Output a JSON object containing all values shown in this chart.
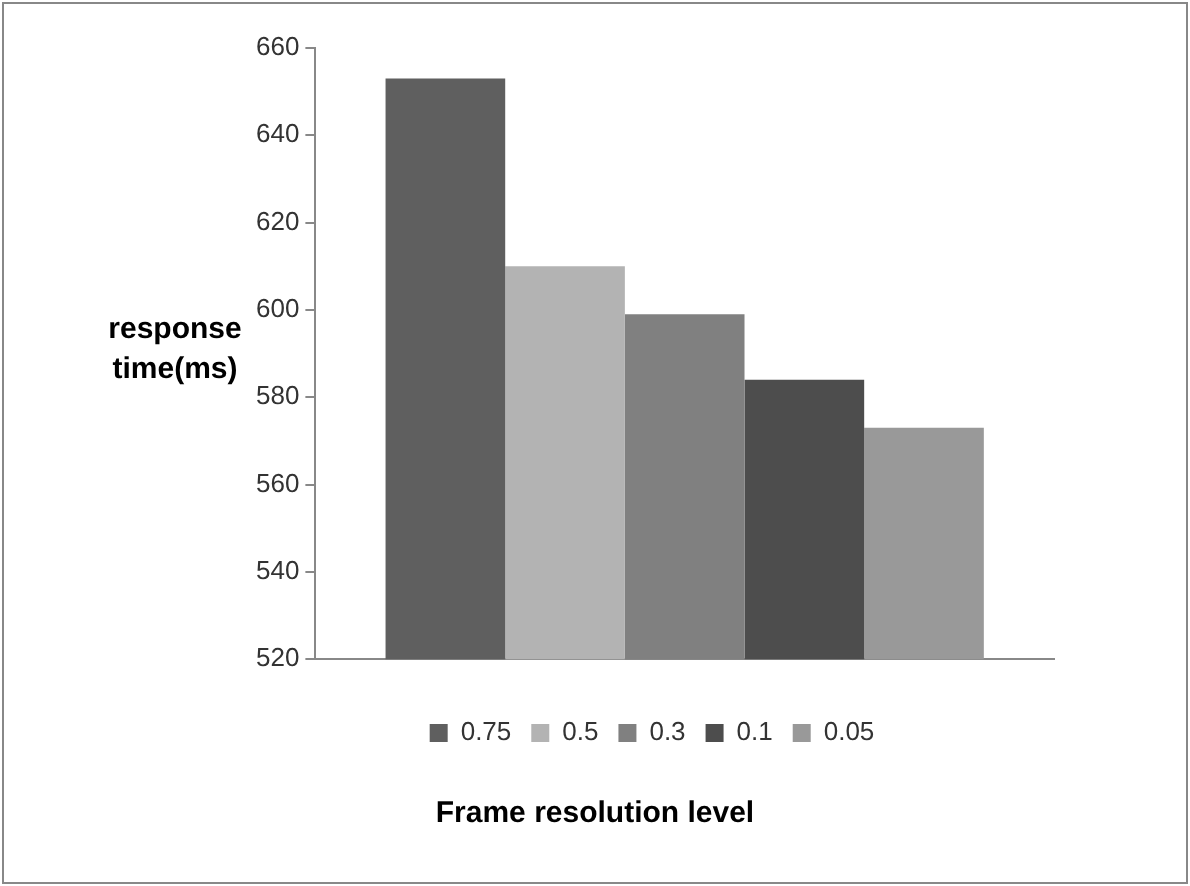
{
  "chart_data": {
    "type": "bar",
    "xlabel": "Frame resolution level",
    "ylabel": "response time(ms)",
    "categories": [
      null
    ],
    "series": [
      {
        "name": "0.75",
        "color": "#5f5f5f",
        "values": [
          653
        ]
      },
      {
        "name": "0.5",
        "color": "#b3b3b3",
        "values": [
          610
        ]
      },
      {
        "name": "0.3",
        "color": "#808080",
        "values": [
          599
        ]
      },
      {
        "name": "0.1",
        "color": "#4d4d4d",
        "values": [
          584
        ]
      },
      {
        "name": "0.05",
        "color": "#999999",
        "values": [
          573
        ]
      }
    ],
    "ylim": [
      520,
      660
    ],
    "yticks": [
      520,
      540,
      560,
      580,
      600,
      620,
      640,
      660
    ],
    "grid": false,
    "legend": "bottom"
  }
}
